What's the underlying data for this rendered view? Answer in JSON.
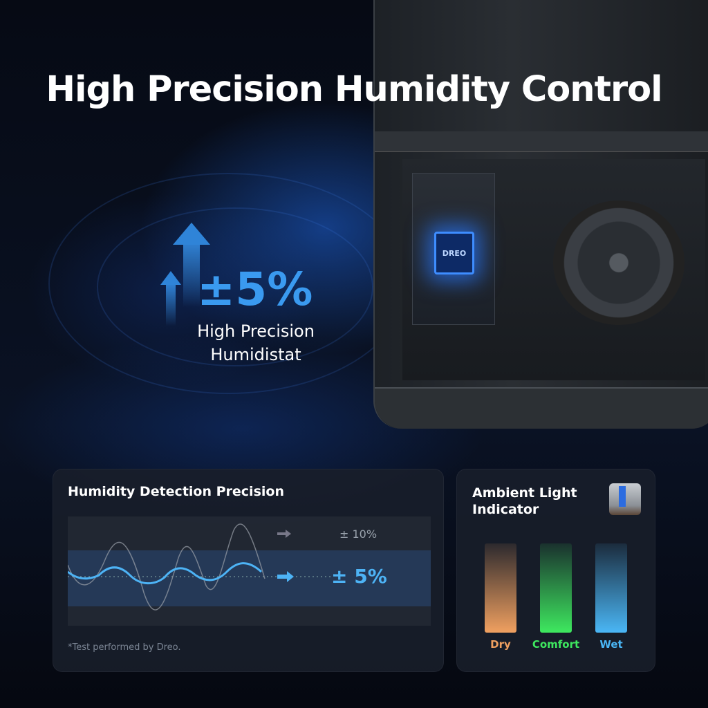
{
  "headline": "High Precision Humidity Control",
  "device": {
    "chip_logo": "DREO"
  },
  "feature": {
    "value": "±5%",
    "label_line1": "High Precision",
    "label_line2": "Humidistat",
    "accent": "#3a9af0"
  },
  "precision_card": {
    "title": "Humidity Detection Precision",
    "other_label": "± 10%",
    "dreo_label": "± 5%",
    "footnote": "*Test performed by Dreo.",
    "accent": "#4db3f5"
  },
  "light_card": {
    "title_line1": "Ambient Light",
    "title_line2": "Indicator",
    "levels": [
      {
        "label": "Dry",
        "color": "#f0a060"
      },
      {
        "label": "Comfort",
        "color": "#3ee85f"
      },
      {
        "label": "Wet",
        "color": "#4ab6f5"
      }
    ]
  }
}
